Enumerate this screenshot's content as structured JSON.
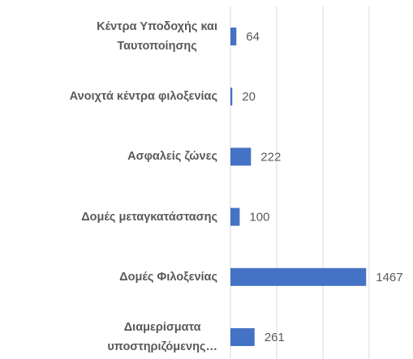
{
  "chart_data": {
    "type": "barh",
    "categories": [
      "Κέντρα Υποδοχής και\nΤαυτοποίησης",
      "Ανοιχτά κέντρα φιλοξενίας",
      "Ασφαλείς ζώνες",
      "Δομές μεταγκατάστασης",
      "Δομές Φιλοξενίας",
      "Διαμερίσματα\nυποστηριζόμενης…"
    ],
    "values": [
      64,
      20,
      222,
      100,
      1467,
      261
    ],
    "color": "#4472c4",
    "xlim": [
      0,
      1500
    ],
    "xticks": [
      0,
      500,
      1000,
      1500
    ],
    "grid": true
  }
}
